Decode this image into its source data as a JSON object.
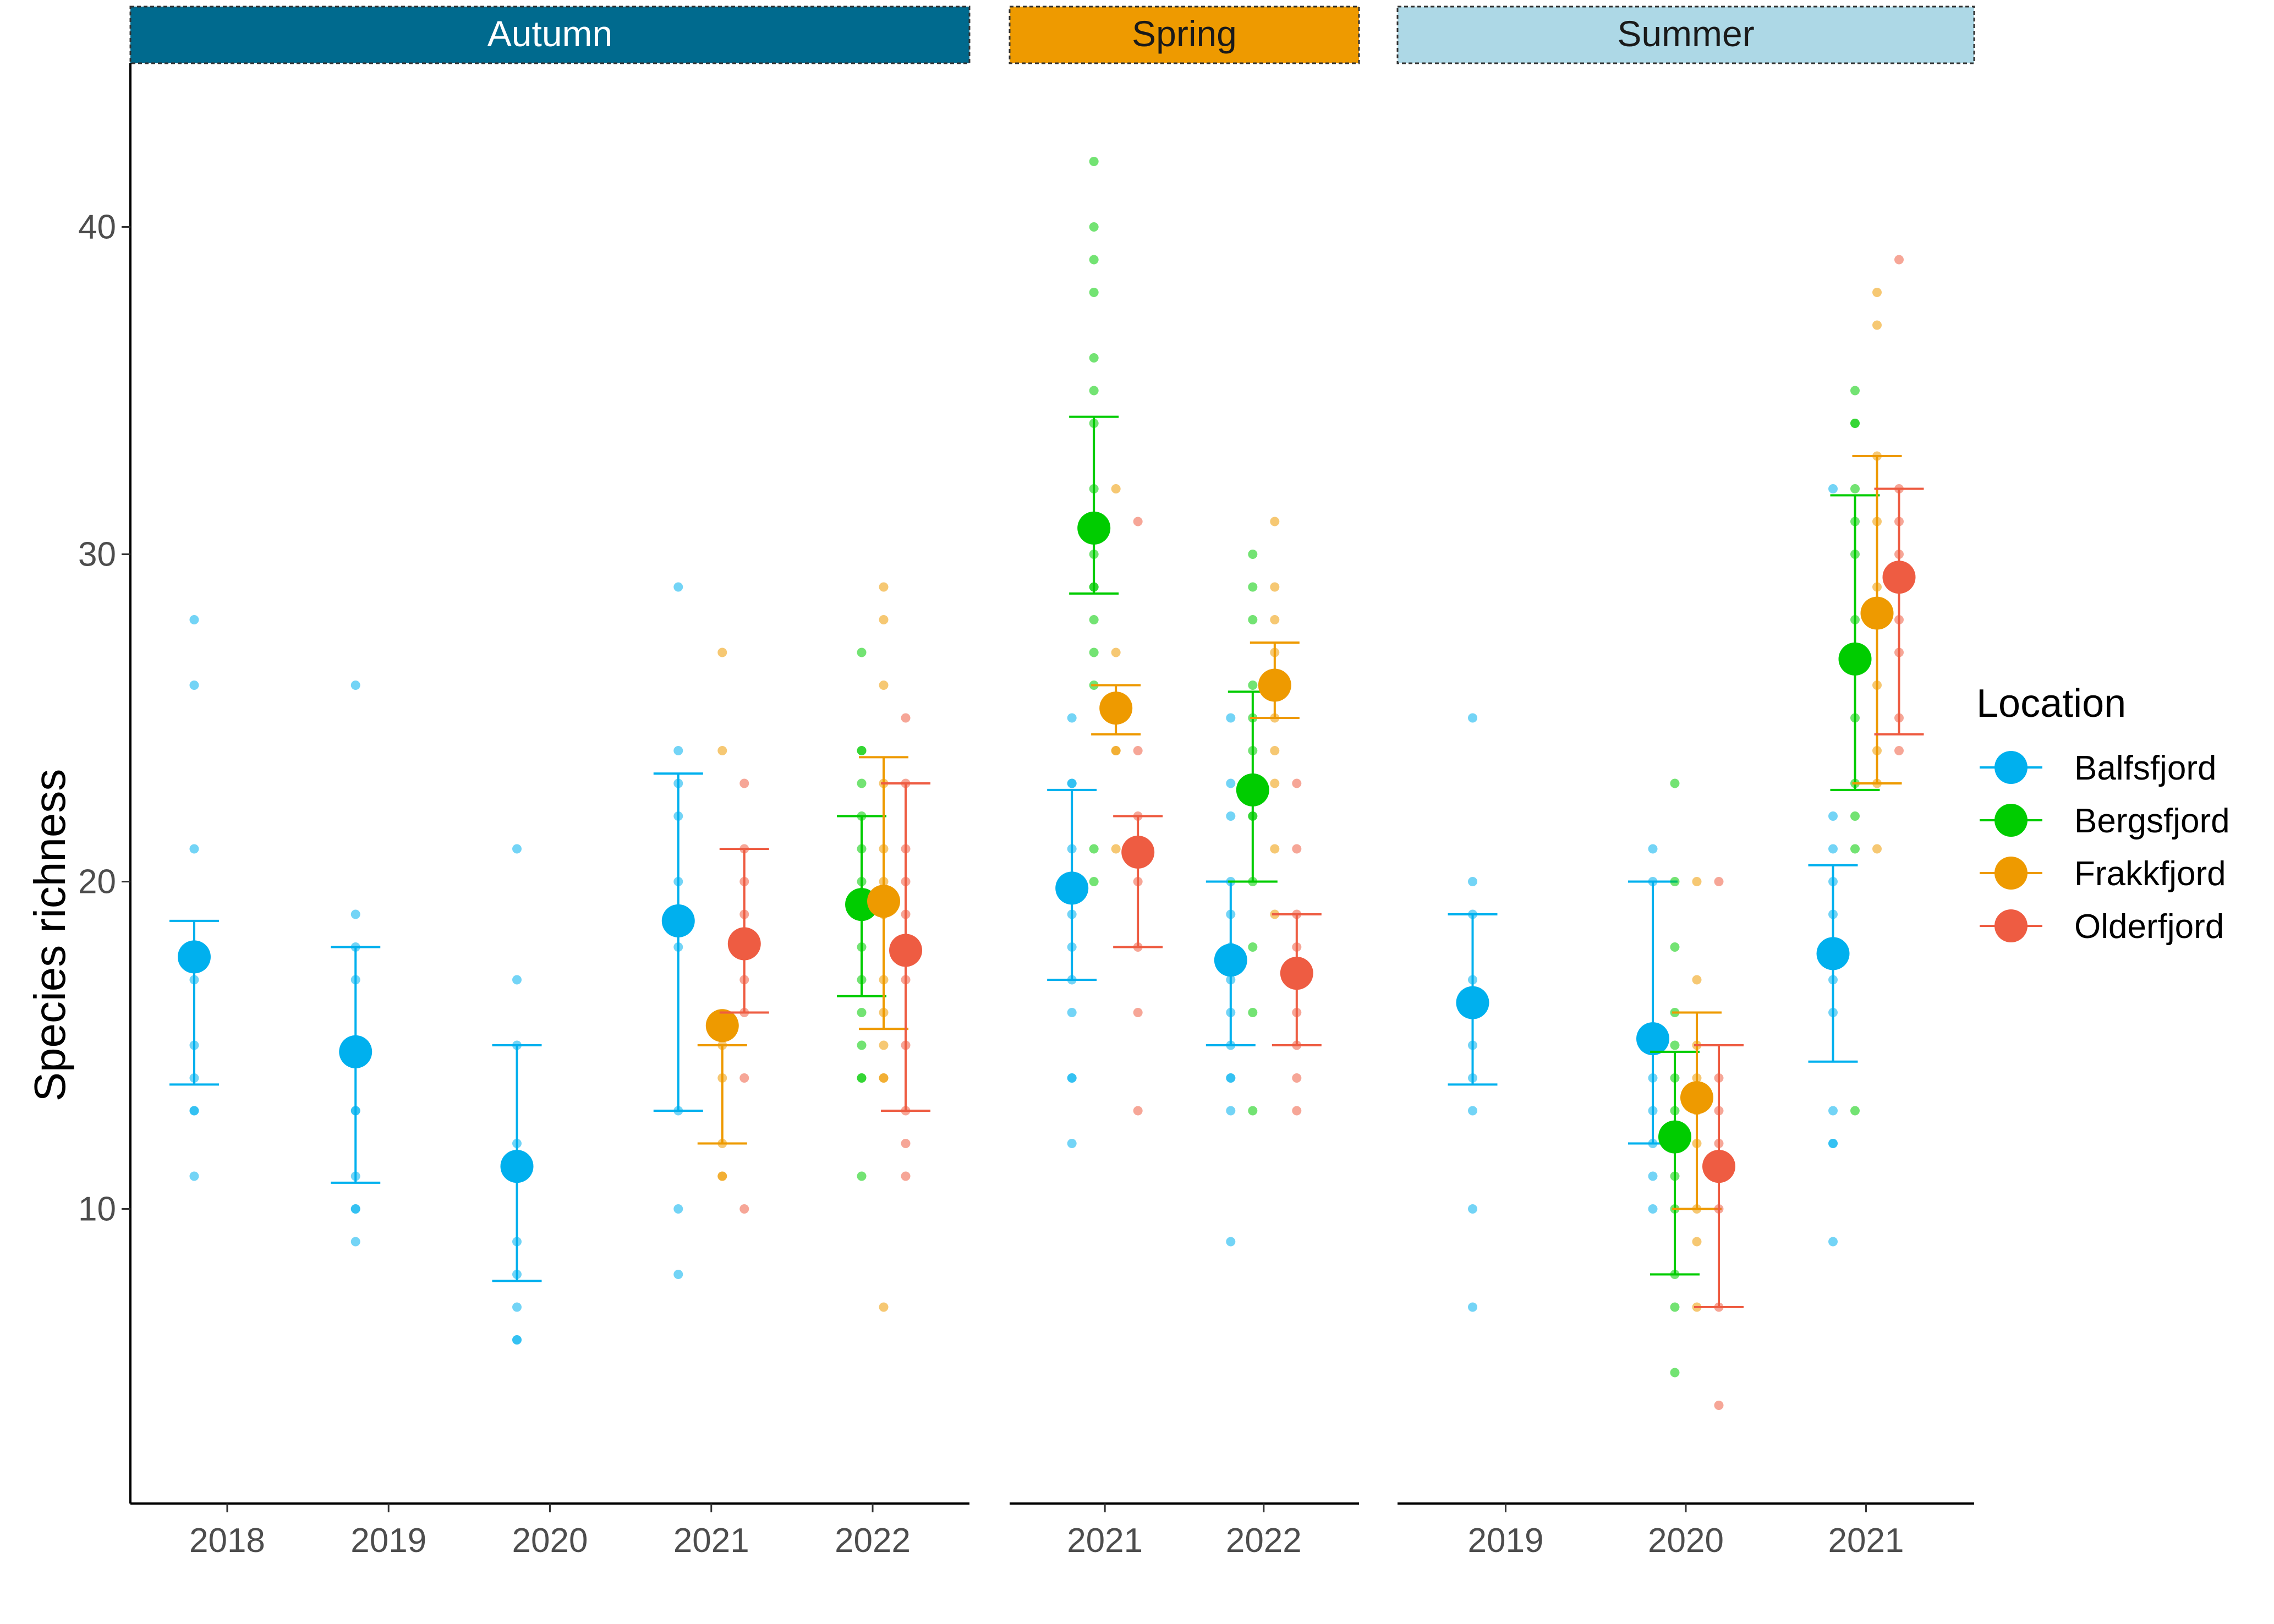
{
  "chart_data": {
    "type": "scatter",
    "ylabel": "Species richness",
    "ylim": [
      1.0,
      45.0
    ],
    "y_ticks": [
      "10",
      "20",
      "30",
      "40"
    ],
    "grid": false,
    "legend": {
      "title": "Location",
      "position": "right",
      "items": [
        "Balfsfjord",
        "Bergsfjord",
        "Frakkfjord",
        "Olderfjord"
      ]
    },
    "colors": {
      "Balfsfjord": "#00B0EE",
      "Bergsfjord": "#00CC00",
      "Frakkfjord": "#EE9A00",
      "Olderfjord": "#EE5C42"
    },
    "panels": [
      {
        "season": "Autumn",
        "strip_color": "#006A8E",
        "strip_text_color": "#ffffff",
        "years": [
          "2018",
          "2019",
          "2020",
          "2021",
          "2022"
        ],
        "groups": [
          {
            "year": "2018",
            "location": "Balfsfjord",
            "mean": 17.7,
            "lower": 13.8,
            "upper": 18.8,
            "points": [
              28,
              26,
              21,
              17,
              15,
              14,
              13,
              13,
              11
            ]
          },
          {
            "year": "2019",
            "location": "Balfsfjord",
            "mean": 14.8,
            "lower": 10.8,
            "upper": 18.0,
            "points": [
              26,
              19,
              18,
              17,
              15,
              13,
              13,
              11,
              10,
              10,
              9
            ]
          },
          {
            "year": "2020",
            "location": "Balfsfjord",
            "mean": 11.3,
            "lower": 7.8,
            "upper": 15.0,
            "points": [
              21,
              17,
              15,
              12,
              9,
              8,
              7,
              6,
              6
            ]
          },
          {
            "year": "2021",
            "location": "Balfsfjord",
            "mean": 18.8,
            "lower": 13.0,
            "upper": 23.3,
            "points": [
              29,
              24,
              23,
              22,
              20,
              18,
              13,
              10,
              8
            ]
          },
          {
            "year": "2021",
            "location": "Frakkfjord",
            "mean": 15.6,
            "lower": 12.0,
            "upper": 15.0,
            "points": [
              27,
              24,
              15,
              14,
              12,
              11,
              11
            ]
          },
          {
            "year": "2021",
            "location": "Olderfjord",
            "mean": 18.1,
            "lower": 16.0,
            "upper": 21.0,
            "points": [
              23,
              21,
              20,
              19,
              17,
              16,
              14,
              10
            ]
          },
          {
            "year": "2022",
            "location": "Bergsfjord",
            "mean": 19.3,
            "lower": 16.5,
            "upper": 22.0,
            "points": [
              27,
              24,
              24,
              23,
              22,
              21,
              20,
              19,
              18,
              17,
              16,
              15,
              14,
              14,
              11
            ]
          },
          {
            "year": "2022",
            "location": "Frakkfjord",
            "mean": 19.4,
            "lower": 15.5,
            "upper": 23.8,
            "points": [
              29,
              28,
              26,
              23,
              21,
              20,
              19,
              17,
              16,
              15,
              14,
              14,
              7
            ]
          },
          {
            "year": "2022",
            "location": "Olderfjord",
            "mean": 17.9,
            "lower": 13.0,
            "upper": 23.0,
            "points": [
              25,
              23,
              21,
              20,
              19,
              17,
              15,
              13,
              12,
              11
            ]
          }
        ]
      },
      {
        "season": "Spring",
        "strip_color": "#EE9A00",
        "strip_text_color": "#1a1a1a",
        "years": [
          "2021",
          "2022"
        ],
        "groups": [
          {
            "year": "2021",
            "location": "Balfsfjord",
            "mean": 19.8,
            "lower": 17.0,
            "upper": 22.8,
            "points": [
              25,
              23,
              23,
              21,
              20,
              19,
              18,
              17,
              16,
              14,
              14,
              12
            ]
          },
          {
            "year": "2021",
            "location": "Bergsfjord",
            "mean": 30.8,
            "lower": 28.8,
            "upper": 34.2,
            "points": [
              42,
              40,
              39,
              38,
              36,
              35,
              34,
              32,
              31,
              30,
              29,
              29,
              28,
              27,
              26,
              21,
              20
            ]
          },
          {
            "year": "2021",
            "location": "Frakkfjord",
            "mean": 25.3,
            "lower": 24.5,
            "upper": 26.0,
            "points": [
              32,
              27,
              25,
              24,
              24,
              21
            ]
          },
          {
            "year": "2021",
            "location": "Olderfjord",
            "mean": 20.9,
            "lower": 18.0,
            "upper": 22.0,
            "points": [
              31,
              24,
              22,
              20,
              18,
              16,
              13
            ]
          },
          {
            "year": "2022",
            "location": "Balfsfjord",
            "mean": 17.6,
            "lower": 15.0,
            "upper": 20.0,
            "points": [
              25,
              23,
              22,
              20,
              19,
              18,
              17,
              16,
              15,
              14,
              14,
              13,
              9
            ]
          },
          {
            "year": "2022",
            "location": "Bergsfjord",
            "mean": 22.8,
            "lower": 20.0,
            "upper": 25.8,
            "points": [
              30,
              29,
              28,
              26,
              25,
              24,
              23,
              22,
              22,
              20,
              18,
              16,
              13
            ]
          },
          {
            "year": "2022",
            "location": "Frakkfjord",
            "mean": 26.0,
            "lower": 25.0,
            "upper": 27.3,
            "points": [
              31,
              29,
              28,
              27,
              25,
              24,
              23,
              21,
              19
            ]
          },
          {
            "year": "2022",
            "location": "Olderfjord",
            "mean": 17.2,
            "lower": 15.0,
            "upper": 19.0,
            "points": [
              23,
              21,
              19,
              18,
              17,
              16,
              15,
              14,
              13
            ]
          }
        ]
      },
      {
        "season": "Summer",
        "strip_color": "#ADD8E6",
        "strip_text_color": "#1a1a1a",
        "years": [
          "2019",
          "2020",
          "2021"
        ],
        "groups": [
          {
            "year": "2019",
            "location": "Balfsfjord",
            "mean": 16.3,
            "lower": 13.8,
            "upper": 19.0,
            "points": [
              25,
              20,
              19,
              17,
              15,
              14,
              13,
              10,
              7
            ]
          },
          {
            "year": "2020",
            "location": "Balfsfjord",
            "mean": 15.2,
            "lower": 12.0,
            "upper": 20.0,
            "points": [
              21,
              20,
              14,
              13,
              12,
              11,
              10
            ]
          },
          {
            "year": "2020",
            "location": "Bergsfjord",
            "mean": 12.2,
            "lower": 8.0,
            "upper": 14.8,
            "points": [
              23,
              20,
              18,
              16,
              15,
              14,
              13,
              12,
              11,
              10,
              8,
              7,
              5
            ]
          },
          {
            "year": "2020",
            "location": "Frakkfjord",
            "mean": 13.4,
            "lower": 10.0,
            "upper": 16.0,
            "points": [
              20,
              17,
              15,
              14,
              13,
              12,
              10,
              9,
              7
            ]
          },
          {
            "year": "2020",
            "location": "Olderfjord",
            "mean": 11.3,
            "lower": 7.0,
            "upper": 15.0,
            "points": [
              20,
              14,
              13,
              12,
              10,
              7,
              4
            ]
          },
          {
            "year": "2021",
            "location": "Balfsfjord",
            "mean": 17.8,
            "lower": 14.5,
            "upper": 20.5,
            "points": [
              32,
              22,
              21,
              20,
              19,
              17,
              16,
              13,
              12,
              12,
              9
            ]
          },
          {
            "year": "2021",
            "location": "Bergsfjord",
            "mean": 26.8,
            "lower": 22.8,
            "upper": 31.8,
            "points": [
              35,
              34,
              34,
              32,
              31,
              30,
              28,
              27,
              25,
              23,
              22,
              21,
              13
            ]
          },
          {
            "year": "2021",
            "location": "Frakkfjord",
            "mean": 28.2,
            "lower": 23.0,
            "upper": 33.0,
            "points": [
              38,
              37,
              33,
              31,
              29,
              28,
              26,
              24,
              23,
              21
            ]
          },
          {
            "year": "2021",
            "location": "Olderfjord",
            "mean": 29.3,
            "lower": 24.5,
            "upper": 32.0,
            "points": [
              39,
              32,
              31,
              30,
              28,
              27,
              25,
              24
            ]
          }
        ]
      }
    ]
  }
}
